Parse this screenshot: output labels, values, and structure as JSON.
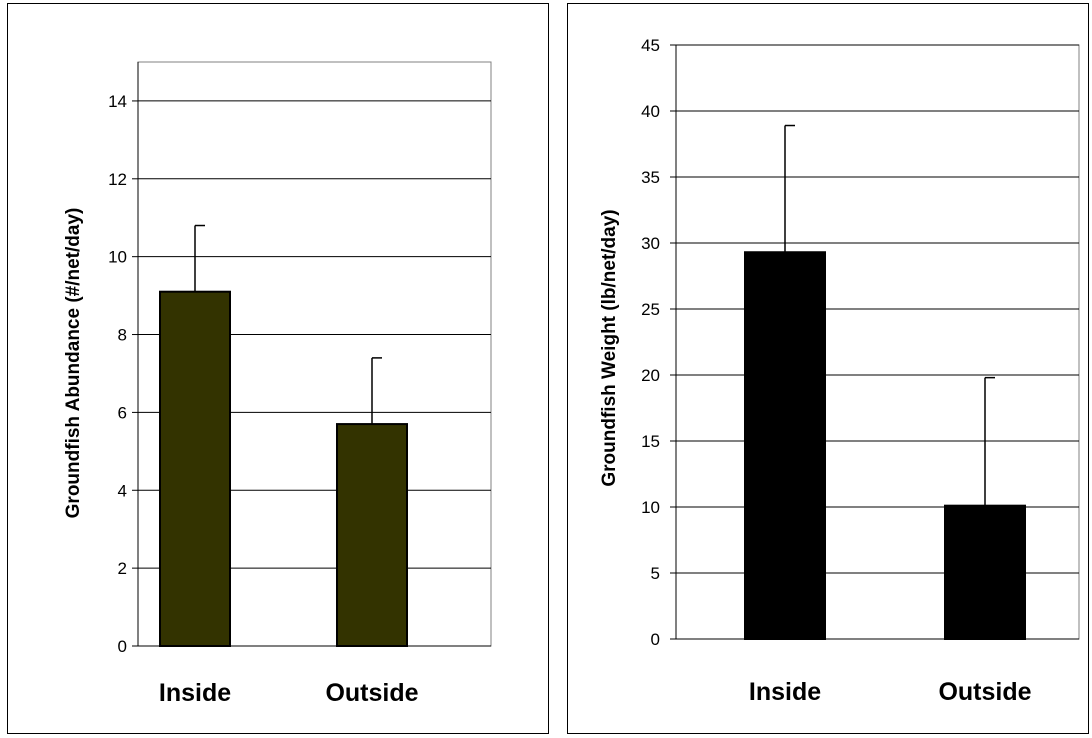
{
  "chart_data": [
    {
      "type": "bar",
      "categories": [
        "Inside",
        "Outside"
      ],
      "values": [
        9.1,
        5.7
      ],
      "error_upper": [
        10.8,
        7.4
      ],
      "ylabel": "Groundfish Abundance (#/net/day)",
      "ylim": [
        0,
        15
      ],
      "yticks": [
        0,
        2,
        4,
        6,
        8,
        10,
        12,
        14
      ],
      "bar_color": "#333300",
      "grid": true,
      "legend": "none"
    },
    {
      "type": "bar",
      "categories": [
        "Inside",
        "Outside"
      ],
      "values": [
        29.3,
        10.1
      ],
      "error_upper": [
        38.9,
        19.8
      ],
      "ylabel": "Groundfish Weight (lb/net/day)",
      "ylim": [
        0,
        45
      ],
      "yticks": [
        0,
        5,
        10,
        15,
        20,
        25,
        30,
        35,
        40,
        45
      ],
      "bar_color": "#000000",
      "grid": true,
      "legend": "none"
    }
  ]
}
